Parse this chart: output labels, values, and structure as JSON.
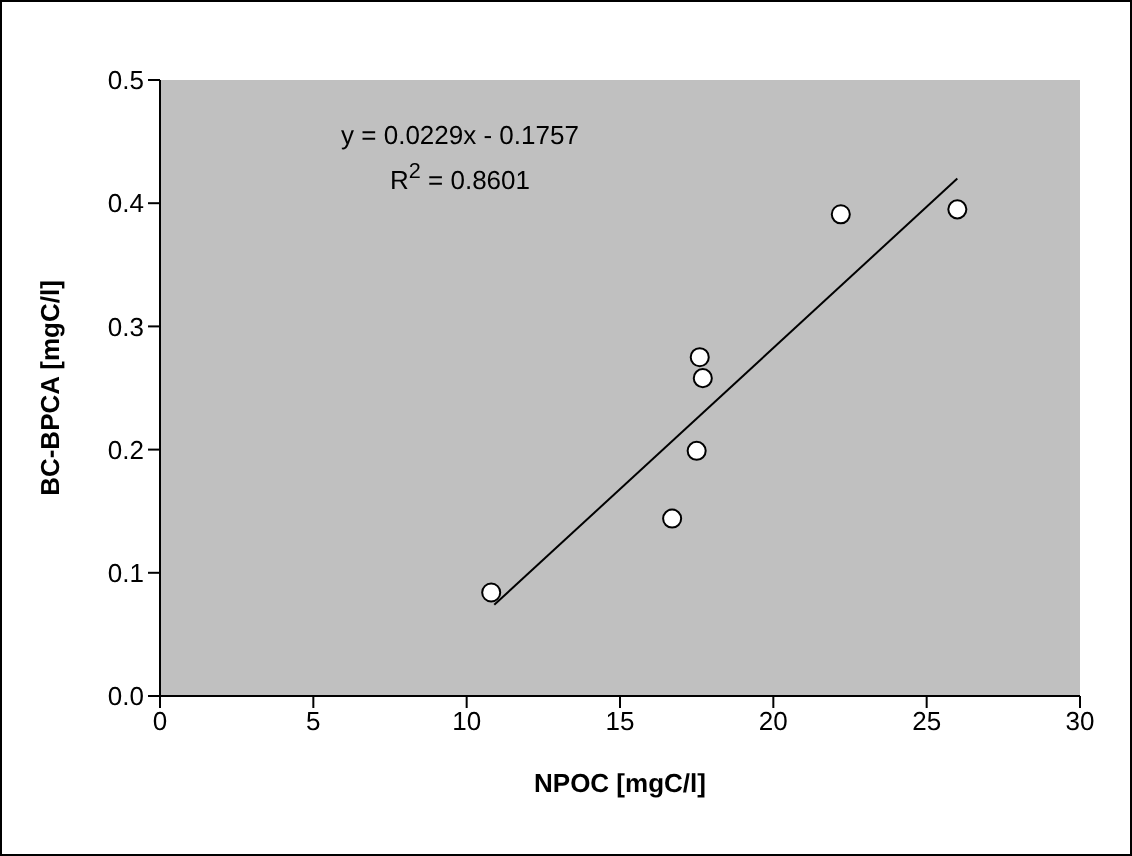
{
  "chart_data": {
    "type": "scatter",
    "xlabel": "NPOC [mgC/l]",
    "ylabel": "BC-BPCA [mgC/l]",
    "annotations": [
      "y = 0.0229x - 0.1757",
      "R$^{2}$ = 0.8601"
    ],
    "xlim": [
      0,
      30
    ],
    "xticks": [
      0,
      5,
      10,
      15,
      20,
      25,
      30
    ],
    "ylim": [
      0,
      0.5
    ],
    "yticks": [
      {
        "value": 0,
        "label": "0.0"
      },
      {
        "value": 0.1,
        "label": "0.1"
      },
      {
        "value": 0.2,
        "label": "0.2"
      },
      {
        "value": 0.3,
        "label": "0.3"
      },
      {
        "value": 0.4,
        "label": "0.4"
      },
      {
        "value": 0.5,
        "label": "0.5"
      }
    ],
    "grid": false,
    "legend": false,
    "series": [
      {
        "type": "scatter",
        "marker": "circle",
        "color": "#ffffff",
        "x": [
          10.8,
          16.7,
          17.5,
          17.6,
          17.7,
          22.2,
          26.0
        ],
        "values": [
          0.084,
          0.144,
          0.199,
          0.275,
          0.258,
          0.391,
          0.395
        ]
      },
      {
        "type": "line",
        "marker": "none",
        "line_style": "solid",
        "color": "#000000",
        "x": [
          10.9,
          26.0
        ],
        "values": [
          0.074,
          0.42
        ]
      }
    ]
  }
}
